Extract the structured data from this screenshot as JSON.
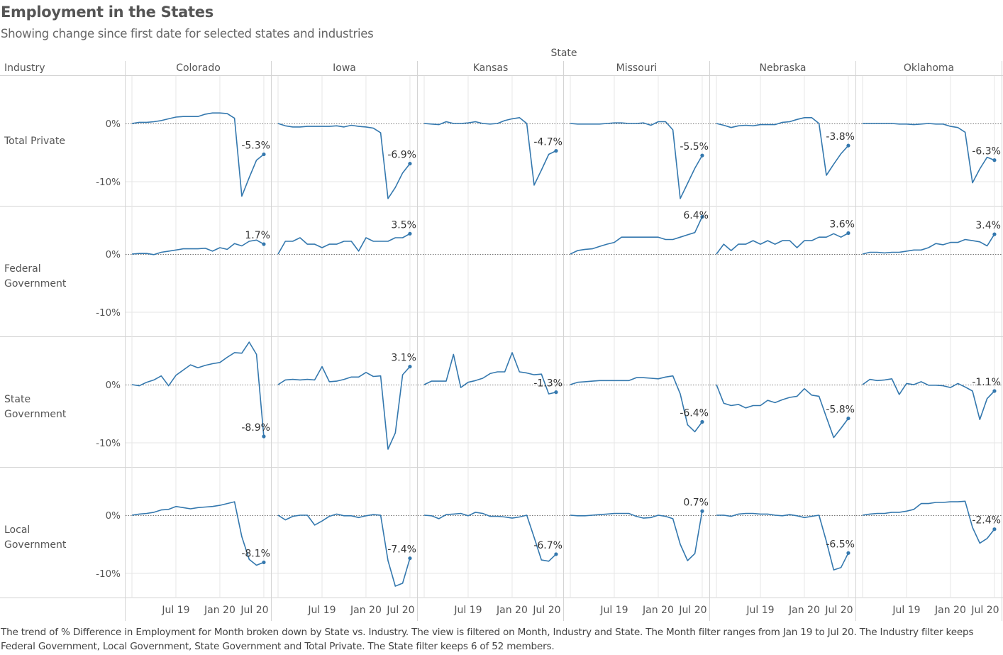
{
  "header": {
    "title": "Employment in the States",
    "subtitle": "Showing change since first date for selected states and industries",
    "column_dimension": "State",
    "row_dimension": "Industry"
  },
  "footer": "The trend of % Difference in Employment for Month broken down by State vs. Industry. The view is filtered on Month, Industry and State. The Month filter ranges from Jan 19 to Jul 20. The Industry filter keeps Federal Government, Local Government, State Government and Total Private. The State filter keeps 6 of 52 members.",
  "colors": {
    "line": "#3478ae",
    "text": "#555555",
    "grid": "#e6e6e6",
    "divider": "#d4d4d4"
  },
  "chart_data": {
    "type": "line",
    "title": "Employment in the States",
    "subtitle": "Showing change since first date for selected states and industries",
    "xlabel": "Month",
    "ylabel": "% Difference in Employment",
    "x": [
      "Jan 19",
      "Feb 19",
      "Mar 19",
      "Apr 19",
      "May 19",
      "Jun 19",
      "Jul 19",
      "Aug 19",
      "Sep 19",
      "Oct 19",
      "Nov 19",
      "Dec 19",
      "Jan 20",
      "Feb 20",
      "Mar 20",
      "Apr 20",
      "May 20",
      "Jun 20",
      "Jul 20"
    ],
    "x_tick_labels": [
      "Jul 19",
      "Jan 20",
      "Jul 20"
    ],
    "y_tick_labels": [
      "0%",
      "-10%"
    ],
    "y_ticks": [
      0,
      -10
    ],
    "ylim": [
      -14.1,
      8.2
    ],
    "grid": true,
    "states": [
      "Colorado",
      "Iowa",
      "Kansas",
      "Missouri",
      "Nebraska",
      "Oklahoma"
    ],
    "industries": [
      {
        "label_lines": [
          "Total Private"
        ]
      },
      {
        "label_lines": [
          "Federal",
          "Government"
        ]
      },
      {
        "label_lines": [
          "State",
          "Government"
        ]
      },
      {
        "label_lines": [
          "Local",
          "Government"
        ]
      }
    ],
    "series": [
      [
        {
          "state": "Colorado",
          "end_label": "-5.3%",
          "values": [
            0,
            0.2,
            0.2,
            0.3,
            0.5,
            0.8,
            1.1,
            1.2,
            1.2,
            1.2,
            1.6,
            1.8,
            1.8,
            1.7,
            0.9,
            -12.5,
            -9.3,
            -6.3,
            -5.3
          ]
        },
        {
          "state": "Iowa",
          "end_label": "-6.9%",
          "values": [
            0,
            -0.4,
            -0.6,
            -0.6,
            -0.5,
            -0.5,
            -0.5,
            -0.5,
            -0.4,
            -0.6,
            -0.3,
            -0.5,
            -0.6,
            -0.8,
            -1.6,
            -12.9,
            -11.0,
            -8.5,
            -6.9
          ]
        },
        {
          "state": "Kansas",
          "end_label": "-4.7%",
          "values": [
            0,
            -0.1,
            -0.2,
            0.3,
            0,
            0,
            0.1,
            0.3,
            0,
            -0.1,
            0,
            0.5,
            0.8,
            1.0,
            0,
            -10.6,
            -8.0,
            -5.3,
            -4.7
          ]
        },
        {
          "state": "Missouri",
          "end_label": "-5.5%",
          "values": [
            0,
            -0.1,
            -0.1,
            -0.1,
            -0.1,
            0,
            0.1,
            0.1,
            0,
            0,
            0.1,
            -0.3,
            0.3,
            0.3,
            -1.1,
            -12.9,
            -10.3,
            -7.7,
            -5.5
          ]
        },
        {
          "state": "Nebraska",
          "end_label": "-3.8%",
          "values": [
            0,
            -0.3,
            -0.7,
            -0.4,
            -0.3,
            -0.4,
            -0.2,
            -0.2,
            -0.2,
            0.2,
            0.3,
            0.7,
            1.0,
            1.0,
            0,
            -8.9,
            -7.0,
            -5.2,
            -3.8
          ]
        },
        {
          "state": "Oklahoma",
          "end_label": "-6.3%",
          "values": [
            0,
            0,
            0,
            0,
            0,
            -0.1,
            -0.1,
            -0.2,
            -0.1,
            0,
            -0.1,
            -0.1,
            -0.5,
            -0.7,
            -1.5,
            -10.2,
            -7.8,
            -5.8,
            -6.3
          ]
        }
      ],
      [
        {
          "state": "Colorado",
          "end_label": "1.7%",
          "values": [
            0,
            0.1,
            0.1,
            -0.1,
            0.3,
            0.5,
            0.7,
            0.9,
            0.9,
            0.9,
            1.0,
            0.5,
            1.1,
            0.8,
            1.8,
            1.4,
            2.2,
            2.4,
            1.7
          ]
        },
        {
          "state": "Iowa",
          "end_label": "3.5%",
          "values": [
            0,
            2.2,
            2.2,
            2.8,
            1.7,
            1.7,
            1.1,
            1.7,
            1.7,
            2.2,
            2.2,
            0.5,
            2.8,
            2.2,
            2.2,
            2.2,
            2.8,
            2.8,
            3.5
          ]
        },
        {
          "state": "Kansas",
          "end_label": null,
          "values": []
        },
        {
          "state": "Missouri",
          "end_label": "6.4%",
          "values": [
            0,
            0.6,
            0.8,
            0.9,
            1.3,
            1.7,
            2.0,
            2.9,
            2.9,
            2.9,
            2.9,
            2.9,
            2.9,
            2.5,
            2.5,
            2.9,
            3.3,
            3.7,
            6.4
          ]
        },
        {
          "state": "Nebraska",
          "end_label": "3.6%",
          "values": [
            0,
            1.7,
            0.6,
            1.7,
            1.7,
            2.3,
            1.7,
            2.3,
            1.7,
            2.3,
            2.3,
            1.1,
            2.3,
            2.3,
            2.9,
            2.9,
            3.5,
            2.9,
            3.6
          ]
        },
        {
          "state": "Oklahoma",
          "end_label": "3.4%",
          "values": [
            0,
            0.3,
            0.3,
            0.2,
            0.3,
            0.3,
            0.5,
            0.7,
            0.7,
            1.1,
            1.8,
            1.6,
            2.0,
            2.0,
            2.5,
            2.3,
            2.1,
            1.4,
            3.4
          ]
        }
      ],
      [
        {
          "state": "Colorado",
          "end_label": "-8.9%",
          "values": [
            0,
            -0.2,
            0.4,
            0.8,
            1.5,
            -0.2,
            1.6,
            2.5,
            3.4,
            2.9,
            3.3,
            3.6,
            3.8,
            4.7,
            5.5,
            5.4,
            7.3,
            5.2,
            -8.9
          ]
        },
        {
          "state": "Iowa",
          "end_label": "3.1%",
          "values": [
            0,
            0.8,
            0.9,
            0.8,
            0.9,
            0.8,
            3.1,
            0.5,
            0.6,
            0.9,
            1.3,
            1.3,
            2.1,
            1.4,
            1.5,
            -11.1,
            -8.3,
            1.7,
            3.1
          ]
        },
        {
          "state": "Kansas",
          "end_label": "-1.3%",
          "values": [
            0,
            0.6,
            0.6,
            0.6,
            5.2,
            -0.5,
            0.4,
            0.7,
            1.1,
            1.9,
            2.2,
            2.2,
            5.5,
            2.2,
            2.0,
            1.7,
            1.8,
            -1.6,
            -1.3
          ]
        },
        {
          "state": "Missouri",
          "end_label": "-6.4%",
          "values": [
            0,
            0.4,
            0.5,
            0.6,
            0.7,
            0.7,
            0.7,
            0.7,
            0.7,
            1.2,
            1.2,
            1.1,
            1.0,
            1.3,
            1.5,
            -1.6,
            -6.9,
            -8.1,
            -6.4
          ]
        },
        {
          "state": "Nebraska",
          "end_label": "-5.8%",
          "values": [
            0,
            -3.2,
            -3.6,
            -3.4,
            -4.0,
            -3.6,
            -3.6,
            -2.7,
            -3.1,
            -2.6,
            -2.2,
            -2.0,
            -0.7,
            -1.8,
            -2.0,
            -5.6,
            -9.1,
            -7.5,
            -5.8
          ]
        },
        {
          "state": "Oklahoma",
          "end_label": "-1.1%",
          "values": [
            0,
            0.9,
            0.7,
            0.8,
            1.0,
            -1.7,
            0.2,
            0,
            0.5,
            -0.1,
            -0.1,
            -0.2,
            -0.5,
            0.2,
            -0.4,
            -1.1,
            -6.0,
            -2.4,
            -1.1
          ]
        }
      ],
      [
        {
          "state": "Colorado",
          "end_label": "-8.1%",
          "values": [
            0,
            0.2,
            0.3,
            0.5,
            0.9,
            1.0,
            1.5,
            1.3,
            1.1,
            1.3,
            1.4,
            1.5,
            1.7,
            2.0,
            2.3,
            -3.7,
            -7.6,
            -8.6,
            -8.1
          ]
        },
        {
          "state": "Iowa",
          "end_label": "-7.4%",
          "values": [
            0,
            -0.8,
            -0.2,
            0,
            0,
            -1.7,
            -1.0,
            -0.2,
            0.2,
            -0.1,
            -0.1,
            -0.4,
            -0.1,
            0.1,
            0,
            -7.8,
            -12.2,
            -11.7,
            -7.4
          ]
        },
        {
          "state": "Kansas",
          "end_label": "-6.7%",
          "values": [
            0,
            -0.1,
            -0.6,
            0.1,
            0.2,
            0.3,
            -0.1,
            0.5,
            0.3,
            -0.2,
            -0.2,
            -0.3,
            -0.5,
            -0.3,
            0,
            -3.8,
            -7.7,
            -7.9,
            -6.7
          ]
        },
        {
          "state": "Missouri",
          "end_label": "0.7%",
          "values": [
            0,
            -0.1,
            -0.1,
            0,
            0.1,
            0.2,
            0.3,
            0.3,
            0.3,
            -0.2,
            -0.5,
            -0.4,
            0,
            -0.2,
            -0.6,
            -5.0,
            -7.8,
            -6.6,
            0.7
          ]
        },
        {
          "state": "Nebraska",
          "end_label": "-6.5%",
          "values": [
            0,
            0,
            -0.2,
            0.2,
            0.3,
            0.3,
            0.2,
            0.2,
            0,
            -0.1,
            0.1,
            -0.1,
            -0.4,
            -0.2,
            0,
            -4.5,
            -9.4,
            -9.0,
            -6.5
          ]
        },
        {
          "state": "Oklahoma",
          "end_label": "-2.4%",
          "values": [
            0,
            0.2,
            0.3,
            0.3,
            0.5,
            0.5,
            0.7,
            1.0,
            2.0,
            2.0,
            2.2,
            2.2,
            2.3,
            2.3,
            2.4,
            -2.1,
            -4.8,
            -4.0,
            -2.4
          ]
        }
      ]
    ]
  }
}
